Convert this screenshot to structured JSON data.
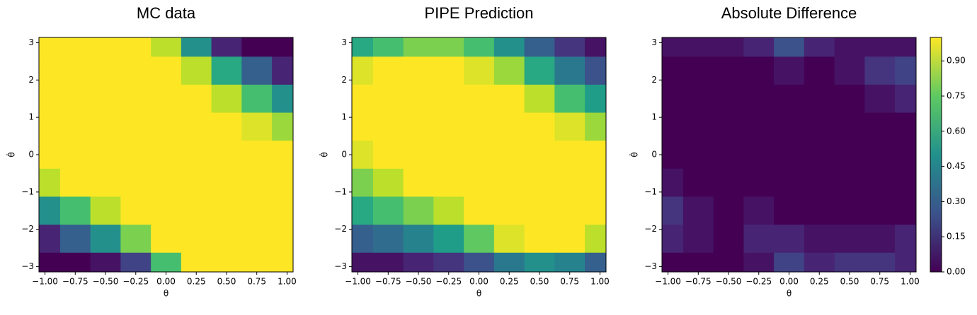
{
  "chart_data": [
    {
      "type": "contour",
      "title": "MC data",
      "xlabel": "θ",
      "ylabel": "θ̇",
      "colormap": "viridis",
      "x": [
        -1,
        -0.75,
        -0.5,
        -0.25,
        0,
        0.25,
        0.5,
        0.75,
        1
      ],
      "y": [
        3,
        2.25,
        1.5,
        0.75,
        0,
        -0.75,
        -1.5,
        -2.25,
        -3
      ],
      "z": [
        [
          1,
          1,
          1,
          1,
          0.9,
          0.5,
          0.1,
          0,
          0
        ],
        [
          1,
          1,
          1,
          1,
          1,
          0.9,
          0.6,
          0.3,
          0.1
        ],
        [
          1,
          1,
          1,
          1,
          1,
          1,
          0.9,
          0.7,
          0.5
        ],
        [
          1,
          1,
          1,
          1,
          1,
          1,
          1,
          0.95,
          0.85
        ],
        [
          1,
          1,
          1,
          1,
          1,
          1,
          1,
          1,
          1
        ],
        [
          0.9,
          1,
          1,
          1,
          1,
          1,
          1,
          1,
          1
        ],
        [
          0.5,
          0.7,
          0.9,
          1,
          1,
          1,
          1,
          1,
          1
        ],
        [
          0.1,
          0.3,
          0.5,
          0.8,
          1,
          1,
          1,
          1,
          1
        ],
        [
          0,
          0,
          0.05,
          0.2,
          0.7,
          1,
          1,
          1,
          1
        ]
      ],
      "xlim": [
        -1.05,
        1.05
      ],
      "ylim": [
        -3.14,
        3.14
      ],
      "xticks": [
        {
          "value": -1,
          "label": "−1.00"
        },
        {
          "value": -0.75,
          "label": "−0.75"
        },
        {
          "value": -0.5,
          "label": "−0.50"
        },
        {
          "value": -0.25,
          "label": "−0.25"
        },
        {
          "value": 0,
          "label": "0.00"
        },
        0.25,
        {
          "value": 0.5,
          "label": "0.50"
        },
        0.75,
        {
          "value": 1,
          "label": "1.00"
        }
      ],
      "yticks": [
        {
          "value": -3,
          "label": "−3"
        },
        {
          "value": -2,
          "label": "−2"
        },
        {
          "value": -1,
          "label": "−1"
        },
        0,
        1,
        2,
        3
      ]
    },
    {
      "type": "contour",
      "title": "PIPE Prediction",
      "xlabel": "θ",
      "ylabel": "θ̇",
      "colormap": "viridis",
      "x": [
        -1,
        -0.75,
        -0.5,
        -0.25,
        0,
        0.25,
        0.5,
        0.75,
        1
      ],
      "y": [
        3,
        2.25,
        1.5,
        0.75,
        0,
        -0.75,
        -1.5,
        -2.25,
        -3
      ],
      "z": [
        [
          0.6,
          0.7,
          0.8,
          0.8,
          0.7,
          0.5,
          0.3,
          0.15,
          0.05
        ],
        [
          0.95,
          1,
          1,
          1,
          0.95,
          0.85,
          0.6,
          0.4,
          0.25
        ],
        [
          1,
          1,
          1,
          1,
          1,
          1,
          0.9,
          0.7,
          0.55
        ],
        [
          1,
          1,
          1,
          1,
          1,
          1,
          1,
          0.95,
          0.85
        ],
        [
          0.95,
          1,
          1,
          1,
          1,
          1,
          1,
          1,
          1
        ],
        [
          0.8,
          0.9,
          1,
          1,
          1,
          1,
          1,
          1,
          1
        ],
        [
          0.6,
          0.7,
          0.8,
          0.9,
          1,
          1,
          1,
          1,
          1
        ],
        [
          0.3,
          0.35,
          0.45,
          0.55,
          0.75,
          0.95,
          1,
          1,
          0.9
        ],
        [
          0.05,
          0.05,
          0.1,
          0.15,
          0.25,
          0.4,
          0.5,
          0.45,
          0.3
        ]
      ],
      "xlim": [
        -1.05,
        1.05
      ],
      "ylim": [
        -3.14,
        3.14
      ],
      "xticks": [
        {
          "value": -1,
          "label": "−1.00"
        },
        {
          "value": -0.75,
          "label": "−0.75"
        },
        {
          "value": -0.5,
          "label": "−0.50"
        },
        {
          "value": -0.25,
          "label": "−0.25"
        },
        {
          "value": 0,
          "label": "0.00"
        },
        0.25,
        {
          "value": 0.5,
          "label": "0.50"
        },
        0.75,
        {
          "value": 1,
          "label": "1.00"
        }
      ],
      "yticks": [
        {
          "value": -3,
          "label": "−3"
        },
        {
          "value": -2,
          "label": "−2"
        },
        {
          "value": -1,
          "label": "−1"
        },
        0,
        1,
        2,
        3
      ]
    },
    {
      "type": "contour",
      "title": "Absolute Difference",
      "xlabel": "θ",
      "ylabel": "θ̇",
      "colormap": "viridis",
      "x": [
        -1,
        -0.75,
        -0.5,
        -0.25,
        0,
        0.25,
        0.5,
        0.75,
        1
      ],
      "y": [
        3,
        2.25,
        1.5,
        0.75,
        0,
        -0.75,
        -1.5,
        -2.25,
        -3
      ],
      "z": [
        [
          0.05,
          0.05,
          0.05,
          0.1,
          0.25,
          0.1,
          0.05,
          0.05,
          0.05
        ],
        [
          0,
          0,
          0,
          0,
          0.05,
          0,
          0.05,
          0.15,
          0.2
        ],
        [
          0,
          0,
          0,
          0,
          0,
          0,
          0,
          0.05,
          0.1
        ],
        [
          0,
          0,
          0,
          0,
          0,
          0,
          0,
          0,
          0
        ],
        [
          0,
          0,
          0,
          0,
          0,
          0,
          0,
          0,
          0
        ],
        [
          0.05,
          0,
          0,
          0,
          0,
          0,
          0,
          0,
          0
        ],
        [
          0.15,
          0.05,
          0,
          0.05,
          0,
          0,
          0,
          0,
          0
        ],
        [
          0.1,
          0.05,
          0,
          0.1,
          0.1,
          0.05,
          0.05,
          0.05,
          0.1
        ],
        [
          0,
          0,
          0,
          0.05,
          0.2,
          0.1,
          0.15,
          0.15,
          0.1
        ]
      ],
      "xlim": [
        -1.05,
        1.05
      ],
      "ylim": [
        -3.14,
        3.14
      ],
      "xticks": [
        {
          "value": -1,
          "label": "−1.00"
        },
        {
          "value": -0.75,
          "label": "−0.75"
        },
        {
          "value": -0.5,
          "label": "−0.50"
        },
        {
          "value": -0.25,
          "label": "−0.25"
        },
        {
          "value": 0,
          "label": "0.00"
        },
        0.25,
        {
          "value": 0.5,
          "label": "0.50"
        },
        0.75,
        {
          "value": 1,
          "label": "1.00"
        }
      ],
      "yticks": [
        {
          "value": -3,
          "label": "−3"
        },
        {
          "value": -2,
          "label": "−2"
        },
        {
          "value": -1,
          "label": "−1"
        },
        0,
        1,
        2,
        3
      ],
      "colorbar": {
        "ylim": [
          0,
          1
        ],
        "yticks": [
          {
            "value": 0,
            "label": "0.00"
          },
          0.15,
          {
            "value": 0.3,
            "label": "0.30"
          },
          0.45,
          {
            "value": 0.6,
            "label": "0.60"
          },
          0.75,
          {
            "value": 0.9,
            "label": "0.90"
          }
        ]
      }
    }
  ]
}
